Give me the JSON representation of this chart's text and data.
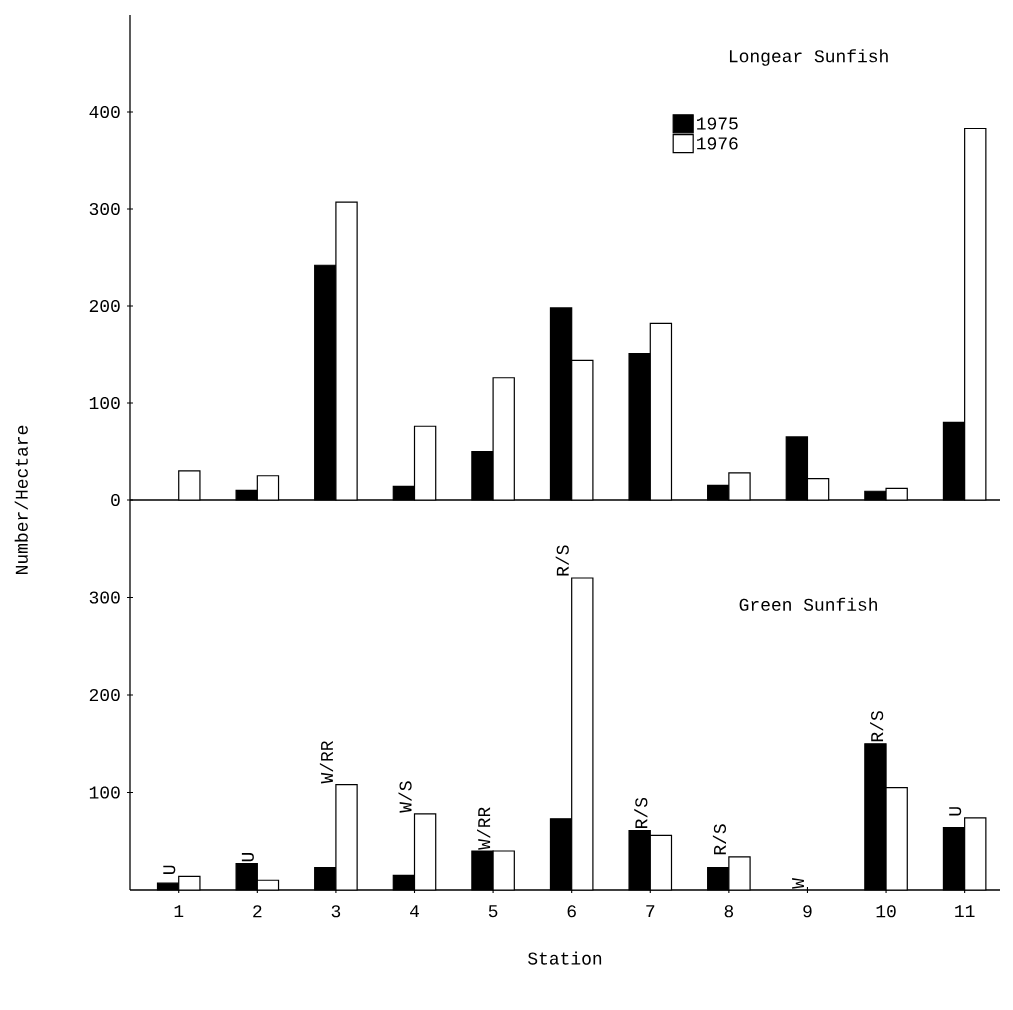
{
  "chart_data": [
    {
      "type": "bar",
      "title": "Longear Sunfish",
      "ylabel": "Number/Hectare",
      "categories": [
        "1",
        "2",
        "3",
        "4",
        "5",
        "6",
        "7",
        "8",
        "9",
        "10",
        "11"
      ],
      "series": [
        {
          "name": "1975",
          "color": "#000000",
          "values": [
            null,
            10,
            242,
            14,
            50,
            198,
            151,
            15,
            65,
            9,
            80
          ]
        },
        {
          "name": "1976",
          "color": "#ffffff",
          "values": [
            30,
            25,
            307,
            76,
            126,
            144,
            182,
            28,
            22,
            12,
            383
          ]
        }
      ],
      "ylim": [
        0,
        500
      ],
      "yticks": [
        0,
        100,
        200,
        300,
        400
      ],
      "tick_labels": "y",
      "legend": "top right"
    },
    {
      "type": "bar",
      "title": "Green Sunfish",
      "xlabel": "Station",
      "categories": [
        "1",
        "2",
        "3",
        "4",
        "5",
        "6",
        "7",
        "8",
        "9",
        "10",
        "11"
      ],
      "series": [
        {
          "color": "#000000",
          "values": [
            7,
            27,
            23,
            15,
            40,
            73,
            61,
            23,
            0,
            150,
            64
          ]
        },
        {
          "color": "#ffffff",
          "values": [
            14,
            10,
            108,
            78,
            40,
            320,
            56,
            34,
            0,
            105,
            74
          ]
        }
      ],
      "ylim": [
        0,
        400
      ],
      "yticks": [
        100,
        200,
        300
      ],
      "annotations": [
        {
          "text": "U",
          "x": "1",
          "y": 14
        },
        {
          "text": "U",
          "x": "2",
          "y": 27
        },
        {
          "text": "W/RR",
          "x": "3",
          "y": 108
        },
        {
          "text": "W/S",
          "x": "4",
          "y": 78
        },
        {
          "text": "W/RR",
          "x": "5",
          "y": 40
        },
        {
          "text": "R/S",
          "x": "6",
          "y": 320
        },
        {
          "text": "R/S",
          "x": "7",
          "y": 61
        },
        {
          "text": "R/S",
          "x": "8",
          "y": 34
        },
        {
          "text": "W",
          "x": "9",
          "y": 0
        },
        {
          "text": "R/S",
          "x": "10",
          "y": 150
        },
        {
          "text": "U",
          "x": "11",
          "y": 74
        }
      ]
    }
  ]
}
